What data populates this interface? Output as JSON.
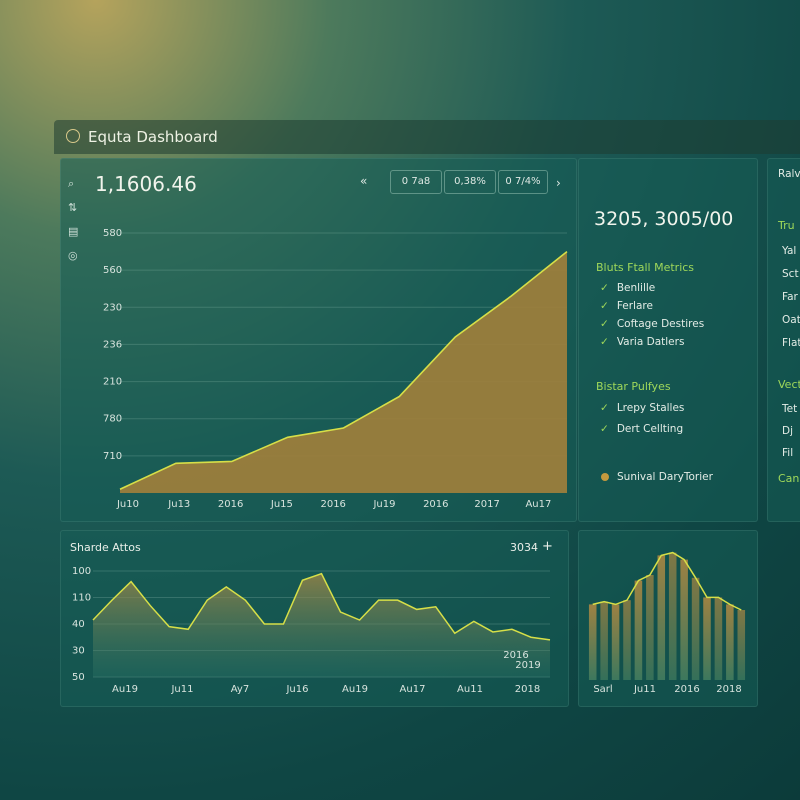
{
  "header": {
    "title": "Equta Dashboard"
  },
  "main_panel": {
    "value": "1,1606.46",
    "controls": [
      "0 7a8",
      "0,38%",
      "0 7/4%"
    ],
    "chart": {
      "type": "area",
      "color": "#a07f3c",
      "line_color": "#d6df48",
      "categories": [
        "Ju10",
        "Ju13",
        "2016",
        "Ju15",
        "2016",
        "Ju19",
        "2016",
        "2017",
        "Au17"
      ],
      "values": [
        0.1,
        0.8,
        0.85,
        1.5,
        1.75,
        2.6,
        4.2,
        5.3,
        6.5
      ],
      "ylim": [
        0,
        7
      ],
      "yticks": [
        {
          "value": 7,
          "label": "580"
        },
        {
          "value": 6,
          "label": "560"
        },
        {
          "value": 5,
          "label": "230"
        },
        {
          "value": 4,
          "label": "236"
        },
        {
          "value": 3,
          "label": "210"
        },
        {
          "value": 2,
          "label": "780"
        },
        {
          "value": 1,
          "label": "710"
        }
      ],
      "grid": true
    }
  },
  "side_panel": {
    "value": "3205, 3005/00",
    "sections": [
      {
        "title": "Bluts Ftall Metrics",
        "items": [
          "Benlille",
          "Ferlare",
          "Coftage Destires",
          "Varia Datlers"
        ]
      },
      {
        "title": "Bistar Pulfyes",
        "items": [
          "Lrepy Stalles",
          "Dert Cellting"
        ]
      }
    ],
    "legend": "Sunival DaryTorier"
  },
  "far_panel": {
    "title": "Ralv",
    "sections": [
      {
        "title": "Tru",
        "items": [
          "Yal",
          "Sct",
          "Far",
          "Oat",
          "Flat"
        ]
      },
      {
        "title": "Vect",
        "items": [
          "Tet",
          "Dj",
          "Fil"
        ]
      }
    ],
    "footer": "Cang"
  },
  "bottom_left": {
    "title": "Sharde Attos",
    "badge": "3034",
    "chart": {
      "type": "line",
      "line_color": "#d6df48",
      "values": [
        2.15,
        2.9,
        3.6,
        2.7,
        1.9,
        1.8,
        2.9,
        3.4,
        2.9,
        2.0,
        2.0,
        3.65,
        3.9,
        2.45,
        2.15,
        2.9,
        2.9,
        2.55,
        2.65,
        1.65,
        2.1,
        1.7,
        1.8,
        1.5,
        1.4
      ],
      "x_labels": [
        "Au19",
        "Ju11",
        "Ay7",
        "Ju16",
        "Au19",
        "Au17",
        "Au11",
        "2018"
      ],
      "ylim": [
        0,
        4
      ],
      "yticks": [
        {
          "value": 4,
          "label": "100"
        },
        {
          "value": 3,
          "label": "110"
        },
        {
          "value": 2,
          "label": "40"
        },
        {
          "value": 1,
          "label": "30"
        },
        {
          "value": 0,
          "label": "50"
        }
      ],
      "annotations": [
        "2016",
        "2019"
      ],
      "grid": true
    }
  },
  "bottom_right": {
    "chart": {
      "type": "bar",
      "color": "#8f7a3c",
      "line_color": "#d6df48",
      "values": [
        54,
        56,
        54,
        57,
        71,
        75,
        89,
        91,
        86,
        73,
        59,
        59,
        54,
        50
      ],
      "x_labels": [
        "Sarl",
        "Ju11",
        "2016",
        "2018"
      ]
    }
  }
}
